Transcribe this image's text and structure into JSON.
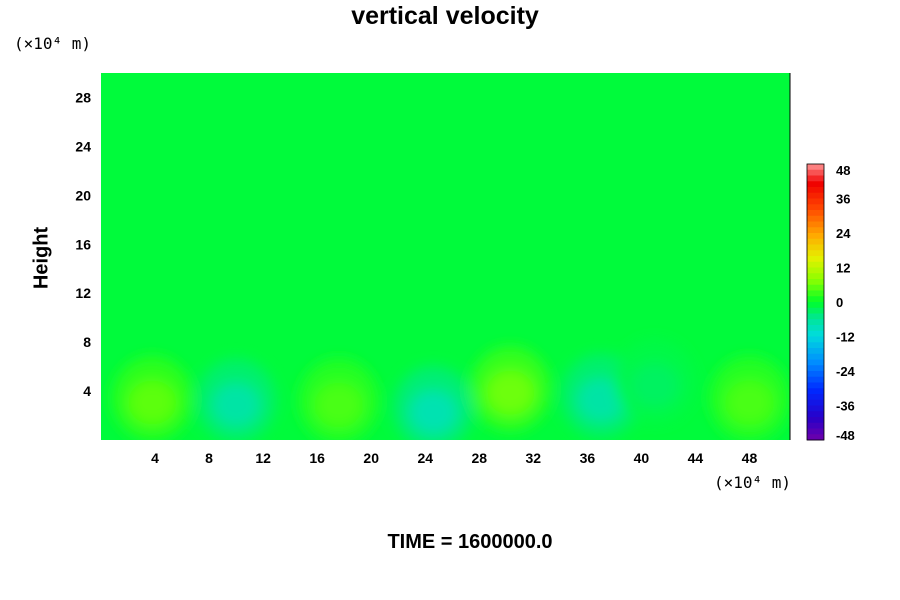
{
  "chart_data": {
    "type": "heatmap",
    "title": "vertical velocity",
    "xlabel": "",
    "ylabel": "Height",
    "x_unit": "(×10⁴ m)",
    "y_unit": "(×10⁴ m)",
    "xlim": [
      0,
      51
    ],
    "ylim": [
      0,
      30
    ],
    "x_ticks": [
      4,
      8,
      12,
      16,
      20,
      24,
      28,
      32,
      36,
      40,
      44,
      48
    ],
    "y_ticks": [
      4,
      8,
      12,
      16,
      20,
      24,
      28
    ],
    "colorbar": {
      "min": -48,
      "max": 48,
      "ticks": [
        48,
        36,
        24,
        12,
        0,
        -12,
        -24,
        -36,
        -48
      ]
    },
    "field_features": [
      {
        "x": 3.8,
        "y": 3.4,
        "value": 5
      },
      {
        "x": 10.0,
        "y": 3.2,
        "value": -7
      },
      {
        "x": 17.6,
        "y": 3.2,
        "value": 4
      },
      {
        "x": 24.6,
        "y": 2.6,
        "value": -8
      },
      {
        "x": 30.3,
        "y": 4.2,
        "value": 6
      },
      {
        "x": 37.0,
        "y": 3.6,
        "value": -7
      },
      {
        "x": 41.0,
        "y": 4.8,
        "value": -3
      },
      {
        "x": 48.0,
        "y": 3.4,
        "value": 4
      }
    ],
    "background_value": -1,
    "time_label": "TIME = 1600000.0"
  }
}
